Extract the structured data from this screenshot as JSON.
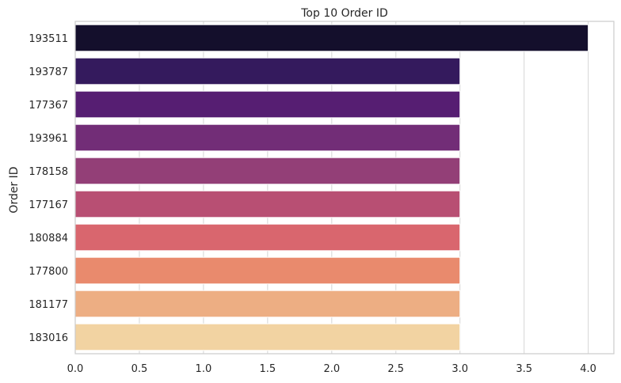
{
  "chart_data": {
    "type": "bar",
    "orientation": "horizontal",
    "title": "Top 10 Order ID",
    "xlabel": "",
    "ylabel": "Order ID",
    "categories": [
      "193511",
      "193787",
      "177367",
      "193961",
      "178158",
      "177167",
      "180884",
      "177800",
      "181177",
      "183016"
    ],
    "values": [
      4,
      3,
      3,
      3,
      3,
      3,
      3,
      3,
      3,
      3
    ],
    "xlim": [
      0,
      4.2
    ],
    "xticks": [
      "0.0",
      "0.5",
      "1.0",
      "1.5",
      "2.0",
      "2.5",
      "3.0",
      "3.5",
      "4.0"
    ],
    "grid": "vertical",
    "palette": [
      "#140f2c",
      "#341a5d",
      "#561e72",
      "#722d77",
      "#933f77",
      "#b84f73",
      "#d9666e",
      "#e98a6d",
      "#edae83",
      "#f2d3a2"
    ]
  }
}
